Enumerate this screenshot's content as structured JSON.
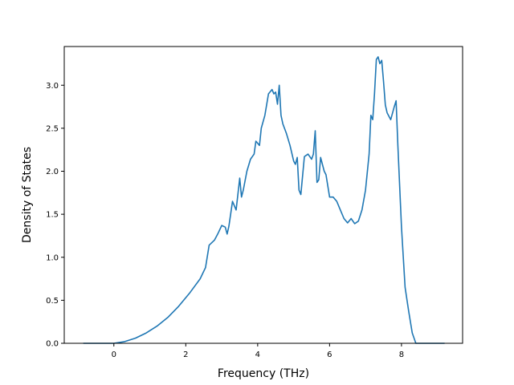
{
  "chart_data": {
    "type": "line",
    "title": "",
    "xlabel": "Frequency (THz)",
    "ylabel": "Density of States",
    "xlim": [
      -1.38,
      9.7
    ],
    "ylim": [
      0.0,
      3.45
    ],
    "x_ticks": [
      0,
      2,
      4,
      6,
      8
    ],
    "x_tick_labels": [
      "0",
      "2",
      "4",
      "6",
      "8"
    ],
    "y_ticks": [
      0.0,
      0.5,
      1.0,
      1.5,
      2.0,
      2.5,
      3.0
    ],
    "y_tick_labels": [
      "0.0",
      "0.5",
      "1.0",
      "1.5",
      "2.0",
      "2.5",
      "3.0"
    ],
    "grid": false,
    "legend": "none",
    "line_color": "#1f77b4",
    "series": [
      {
        "x": [
          -0.85,
          0.0,
          0.3,
          0.6,
          0.9,
          1.2,
          1.5,
          1.8,
          2.1,
          2.4,
          2.55,
          2.65,
          2.8,
          2.9,
          3.0,
          3.1,
          3.15,
          3.2,
          3.3,
          3.4,
          3.5,
          3.55,
          3.6,
          3.7,
          3.8,
          3.9,
          3.95,
          4.05,
          4.1,
          4.2,
          4.3,
          4.4,
          4.45,
          4.5,
          4.55,
          4.6,
          4.65,
          4.7,
          4.8,
          4.9,
          5.0,
          5.05,
          5.1,
          5.15,
          5.2,
          5.3,
          5.4,
          5.5,
          5.55,
          5.6,
          5.65,
          5.7,
          5.75,
          5.85,
          5.9,
          6.0,
          6.1,
          6.2,
          6.3,
          6.4,
          6.5,
          6.6,
          6.7,
          6.8,
          6.9,
          7.0,
          7.1,
          7.15,
          7.2,
          7.25,
          7.3,
          7.35,
          7.4,
          7.45,
          7.5,
          7.55,
          7.6,
          7.7,
          7.8,
          7.85,
          7.9,
          8.0,
          8.1,
          8.2,
          8.3,
          8.4,
          9.2
        ],
        "y": [
          0.0,
          0.0,
          0.02,
          0.06,
          0.12,
          0.2,
          0.3,
          0.43,
          0.58,
          0.75,
          0.88,
          1.14,
          1.2,
          1.28,
          1.37,
          1.35,
          1.27,
          1.36,
          1.65,
          1.55,
          1.92,
          1.7,
          1.78,
          2.0,
          2.14,
          2.2,
          2.35,
          2.3,
          2.5,
          2.65,
          2.9,
          2.95,
          2.9,
          2.92,
          2.78,
          3.0,
          2.65,
          2.55,
          2.44,
          2.3,
          2.12,
          2.08,
          2.16,
          1.78,
          1.73,
          2.17,
          2.2,
          2.14,
          2.2,
          2.47,
          1.87,
          1.9,
          2.16,
          2.0,
          1.96,
          1.7,
          1.7,
          1.65,
          1.55,
          1.45,
          1.4,
          1.45,
          1.39,
          1.42,
          1.55,
          1.78,
          2.2,
          2.65,
          2.6,
          2.9,
          3.3,
          3.33,
          3.25,
          3.29,
          3.05,
          2.77,
          2.68,
          2.6,
          2.75,
          2.82,
          2.3,
          1.35,
          0.65,
          0.37,
          0.12,
          0.0,
          0.0
        ]
      }
    ]
  }
}
